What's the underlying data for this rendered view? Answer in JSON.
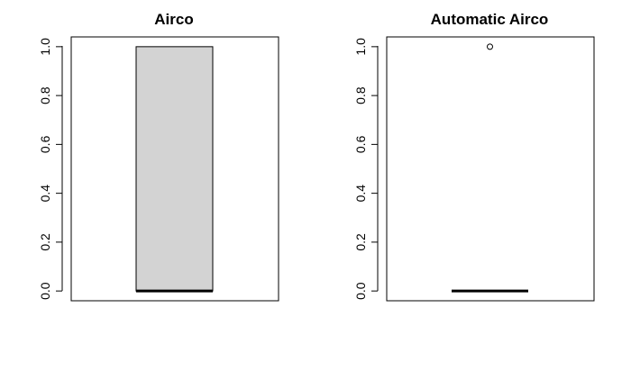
{
  "chart_data": [
    {
      "type": "boxplot",
      "title": "Airco",
      "xlabel": "",
      "ylabel": "",
      "ylim": [
        -0.04,
        1.04
      ],
      "yticks": [
        "0.0",
        "0.2",
        "0.4",
        "0.6",
        "0.8",
        "1.0"
      ],
      "box": {
        "min": 0.0,
        "q1": 0.0,
        "median": 0.0,
        "q3": 1.0,
        "max": 1.0,
        "fill": "#d3d3d3"
      },
      "outliers": []
    },
    {
      "type": "boxplot",
      "title": "Automatic Airco",
      "xlabel": "",
      "ylabel": "",
      "ylim": [
        -0.04,
        1.04
      ],
      "yticks": [
        "0.0",
        "0.2",
        "0.4",
        "0.6",
        "0.8",
        "1.0"
      ],
      "box": {
        "min": 0.0,
        "q1": 0.0,
        "median": 0.0,
        "q3": 0.0,
        "max": 0.0,
        "fill": "#d3d3d3"
      },
      "outliers": [
        1.0
      ]
    }
  ]
}
